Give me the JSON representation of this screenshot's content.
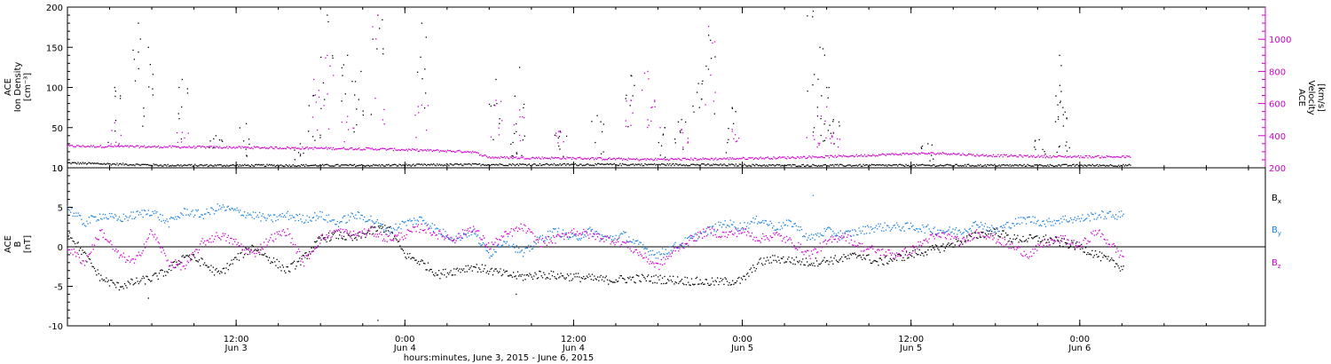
{
  "chart_data": [
    {
      "type": "scatter",
      "panel": "top",
      "ylabel_lines": [
        "ACE",
        "Ion Density",
        "[cm⁻³]"
      ],
      "ylabel_right_lines": [
        "ACE",
        "Velocity",
        "[km/s]"
      ],
      "ylim": [
        0,
        200
      ],
      "ylim_right": [
        200,
        1200
      ],
      "yticks": [
        0,
        50,
        100,
        150,
        200
      ],
      "yticks_right": [
        200,
        400,
        600,
        800,
        1000
      ],
      "colors": {
        "density": "#000000",
        "velocity": "#d000d0"
      },
      "series": [
        {
          "key": "density",
          "axis": "left",
          "baseline": [
            [
              0.0,
              6
            ],
            [
              0.1,
              5
            ],
            [
              0.3,
              3
            ],
            [
              0.6,
              3
            ],
            [
              0.9,
              3
            ],
            [
              1.2,
              4
            ],
            [
              1.5,
              4
            ],
            [
              1.8,
              4
            ],
            [
              2.1,
              3
            ],
            [
              2.5,
              3
            ],
            [
              3.15,
              3
            ]
          ],
          "spikes": [
            [
              0.14,
              100
            ],
            [
              0.21,
              180
            ],
            [
              0.24,
              150
            ],
            [
              0.34,
              110
            ],
            [
              0.44,
              40
            ],
            [
              0.53,
              55
            ],
            [
              0.69,
              30
            ],
            [
              0.73,
              90
            ],
            [
              0.77,
              190
            ],
            [
              0.83,
              140
            ],
            [
              0.87,
              120
            ],
            [
              0.92,
              190
            ],
            [
              1.05,
              180
            ],
            [
              1.27,
              110
            ],
            [
              1.33,
              45
            ],
            [
              1.34,
              125
            ],
            [
              1.46,
              45
            ],
            [
              1.57,
              65
            ],
            [
              1.67,
              115
            ],
            [
              1.77,
              50
            ],
            [
              1.82,
              60
            ],
            [
              1.87,
              105
            ],
            [
              1.9,
              165
            ],
            [
              1.97,
              75
            ],
            [
              2.21,
              195
            ],
            [
              2.23,
              150
            ],
            [
              2.25,
              100
            ],
            [
              2.27,
              60
            ],
            [
              2.55,
              30
            ],
            [
              2.88,
              35
            ],
            [
              2.94,
              140
            ],
            [
              2.945,
              95
            ],
            [
              2.95,
              75
            ]
          ]
        },
        {
          "key": "velocity",
          "axis": "right",
          "baseline": [
            [
              0.0,
              335
            ],
            [
              0.3,
              330
            ],
            [
              0.6,
              325
            ],
            [
              0.9,
              318
            ],
            [
              1.2,
              300
            ],
            [
              1.25,
              265
            ],
            [
              1.35,
              262
            ],
            [
              1.5,
              260
            ],
            [
              1.7,
              252
            ],
            [
              1.9,
              255
            ],
            [
              2.1,
              262
            ],
            [
              2.3,
              272
            ],
            [
              2.5,
              288
            ],
            [
              2.6,
              290
            ],
            [
              2.7,
              278
            ],
            [
              2.9,
              270
            ],
            [
              3.15,
              268
            ]
          ],
          "spikes": [
            [
              0.14,
              480
            ],
            [
              0.34,
              420
            ],
            [
              0.73,
              750
            ],
            [
              0.77,
              900
            ],
            [
              0.83,
              520
            ],
            [
              0.92,
              1150
            ],
            [
              1.05,
              590
            ],
            [
              1.27,
              620
            ],
            [
              1.34,
              560
            ],
            [
              1.46,
              430
            ],
            [
              1.67,
              620
            ],
            [
              1.72,
              800
            ],
            [
              1.74,
              620
            ],
            [
              1.82,
              440
            ],
            [
              1.9,
              1080
            ],
            [
              1.97,
              440
            ],
            [
              2.21,
              400
            ],
            [
              2.25,
              580
            ],
            [
              2.27,
              420
            ]
          ]
        }
      ]
    },
    {
      "type": "scatter",
      "panel": "bottom",
      "ylabel_lines": [
        "ACE",
        "B",
        "[nT]"
      ],
      "ylim": [
        -10,
        10
      ],
      "yticks": [
        -10,
        -5,
        0,
        5,
        10
      ],
      "legend": [
        {
          "key": "bx",
          "label": "B",
          "sub": "x",
          "color": "#000000"
        },
        {
          "key": "by",
          "label": "B",
          "sub": "y",
          "color": "#1a80e0"
        },
        {
          "key": "bz",
          "label": "B",
          "sub": "z",
          "color": "#d000d0"
        }
      ],
      "series": [
        {
          "key": "bx",
          "color": "#000000",
          "points": [
            [
              0.0,
              2
            ],
            [
              0.05,
              -1
            ],
            [
              0.1,
              -4
            ],
            [
              0.15,
              -5
            ],
            [
              0.2,
              -4.5
            ],
            [
              0.25,
              -4
            ],
            [
              0.3,
              -3
            ],
            [
              0.35,
              -1
            ],
            [
              0.4,
              -2
            ],
            [
              0.45,
              -3.5
            ],
            [
              0.5,
              -1.5
            ],
            [
              0.55,
              0
            ],
            [
              0.6,
              -1.5
            ],
            [
              0.65,
              -3
            ],
            [
              0.7,
              -1.5
            ],
            [
              0.75,
              1
            ],
            [
              0.8,
              1.5
            ],
            [
              0.85,
              1
            ],
            [
              0.9,
              2
            ],
            [
              0.95,
              2.5
            ],
            [
              1.0,
              -1
            ],
            [
              1.05,
              -2
            ],
            [
              1.1,
              -3.5
            ],
            [
              1.15,
              -3
            ],
            [
              1.2,
              -2.5
            ],
            [
              1.25,
              -3
            ],
            [
              1.3,
              -3.5
            ],
            [
              1.35,
              -3.8
            ],
            [
              1.4,
              -3.5
            ],
            [
              1.5,
              -3.8
            ],
            [
              1.6,
              -4.2
            ],
            [
              1.7,
              -4
            ],
            [
              1.8,
              -4.2
            ],
            [
              1.9,
              -4.5
            ],
            [
              2.0,
              -4.3
            ],
            [
              2.05,
              -2
            ],
            [
              2.1,
              -1.5
            ],
            [
              2.2,
              -2
            ],
            [
              2.3,
              -1.5
            ],
            [
              2.35,
              -1
            ],
            [
              2.4,
              -2
            ],
            [
              2.5,
              -1
            ],
            [
              2.6,
              0
            ],
            [
              2.7,
              1.5
            ],
            [
              2.75,
              2
            ],
            [
              2.8,
              1
            ],
            [
              2.9,
              1
            ],
            [
              3.0,
              0
            ],
            [
              3.05,
              -1
            ],
            [
              3.12,
              -2.5
            ]
          ]
        },
        {
          "key": "by",
          "color": "#1a80e0",
          "points": [
            [
              0.0,
              5
            ],
            [
              0.05,
              3
            ],
            [
              0.1,
              4
            ],
            [
              0.15,
              3.5
            ],
            [
              0.2,
              4
            ],
            [
              0.25,
              4.5
            ],
            [
              0.3,
              3
            ],
            [
              0.35,
              4.5
            ],
            [
              0.4,
              4
            ],
            [
              0.45,
              5
            ],
            [
              0.5,
              4.5
            ],
            [
              0.55,
              4
            ],
            [
              0.6,
              3.5
            ],
            [
              0.65,
              4
            ],
            [
              0.7,
              3.5
            ],
            [
              0.75,
              4
            ],
            [
              0.8,
              3
            ],
            [
              0.85,
              4
            ],
            [
              0.9,
              3.5
            ],
            [
              0.95,
              2
            ],
            [
              1.0,
              3
            ],
            [
              1.05,
              3.5
            ],
            [
              1.1,
              2
            ],
            [
              1.15,
              1
            ],
            [
              1.2,
              2
            ],
            [
              1.25,
              -1
            ],
            [
              1.3,
              1
            ],
            [
              1.35,
              -1
            ],
            [
              1.4,
              1
            ],
            [
              1.45,
              2
            ],
            [
              1.5,
              1
            ],
            [
              1.55,
              2
            ],
            [
              1.6,
              1
            ],
            [
              1.65,
              1.5
            ],
            [
              1.7,
              0
            ],
            [
              1.75,
              -1
            ],
            [
              1.8,
              0
            ],
            [
              1.9,
              2
            ],
            [
              1.95,
              3
            ],
            [
              2.0,
              2.5
            ],
            [
              2.05,
              3.5
            ],
            [
              2.1,
              2.5
            ],
            [
              2.15,
              3
            ],
            [
              2.2,
              1
            ],
            [
              2.25,
              2
            ],
            [
              2.3,
              1.5
            ],
            [
              2.35,
              2
            ],
            [
              2.4,
              2.5
            ],
            [
              2.5,
              2.5
            ],
            [
              2.6,
              2
            ],
            [
              2.65,
              2
            ],
            [
              2.7,
              3
            ],
            [
              2.75,
              2
            ],
            [
              2.8,
              3
            ],
            [
              2.85,
              3.5
            ],
            [
              2.9,
              3
            ],
            [
              2.95,
              3.5
            ],
            [
              3.0,
              3.5
            ],
            [
              3.05,
              4
            ],
            [
              3.1,
              4
            ],
            [
              3.12,
              4
            ]
          ]
        },
        {
          "key": "bz",
          "color": "#d000d0",
          "points": [
            [
              0.0,
              0
            ],
            [
              0.05,
              -2
            ],
            [
              0.1,
              2
            ],
            [
              0.15,
              -1
            ],
            [
              0.2,
              -2
            ],
            [
              0.25,
              2
            ],
            [
              0.3,
              -2
            ],
            [
              0.35,
              -2.5
            ],
            [
              0.4,
              0.5
            ],
            [
              0.45,
              1.5
            ],
            [
              0.5,
              0.5
            ],
            [
              0.55,
              -1
            ],
            [
              0.6,
              1
            ],
            [
              0.65,
              2
            ],
            [
              0.7,
              -2
            ],
            [
              0.75,
              1
            ],
            [
              0.8,
              2
            ],
            [
              0.85,
              1.5
            ],
            [
              0.9,
              2
            ],
            [
              0.95,
              1
            ],
            [
              1.0,
              1.5
            ],
            [
              1.05,
              2.5
            ],
            [
              1.1,
              1.5
            ],
            [
              1.15,
              1
            ],
            [
              1.2,
              2.5
            ],
            [
              1.25,
              0
            ],
            [
              1.3,
              1.5
            ],
            [
              1.35,
              2.5
            ],
            [
              1.4,
              0.5
            ],
            [
              1.45,
              1
            ],
            [
              1.5,
              2
            ],
            [
              1.55,
              1.5
            ],
            [
              1.6,
              1
            ],
            [
              1.65,
              0.5
            ],
            [
              1.7,
              -1
            ],
            [
              1.75,
              -2.5
            ],
            [
              1.8,
              -0.5
            ],
            [
              1.85,
              1
            ],
            [
              1.9,
              2
            ],
            [
              1.95,
              1.5
            ],
            [
              2.0,
              2
            ],
            [
              2.05,
              1
            ],
            [
              2.1,
              1.5
            ],
            [
              2.15,
              0.5
            ],
            [
              2.2,
              -1
            ],
            [
              2.25,
              0.5
            ],
            [
              2.3,
              1.5
            ],
            [
              2.35,
              0
            ],
            [
              2.4,
              -0.5
            ],
            [
              2.45,
              -1
            ],
            [
              2.5,
              -0.5
            ],
            [
              2.55,
              1
            ],
            [
              2.6,
              1.5
            ],
            [
              2.65,
              0.5
            ],
            [
              2.7,
              2
            ],
            [
              2.75,
              1
            ],
            [
              2.8,
              0
            ],
            [
              2.85,
              -1
            ],
            [
              2.9,
              0.5
            ],
            [
              2.95,
              1
            ],
            [
              3.0,
              0
            ],
            [
              3.05,
              2
            ],
            [
              3.1,
              0
            ],
            [
              3.12,
              -1
            ]
          ]
        }
      ],
      "hline": 0,
      "outliers": [
        [
          0.24,
          -6.5
        ],
        [
          1.33,
          -6
        ],
        [
          2.21,
          6.5
        ],
        [
          0.92,
          -9.3
        ]
      ]
    }
  ],
  "x_axis": {
    "xlim": [
      0,
      3.55
    ],
    "ticks": [
      {
        "x": 0.5,
        "time": "12:00",
        "date": "Jun 3"
      },
      {
        "x": 1.0,
        "time": "0:00",
        "date": "Jun 4"
      },
      {
        "x": 1.5,
        "time": "12:00",
        "date": "Jun 4"
      },
      {
        "x": 2.0,
        "time": "0:00",
        "date": "Jun 5"
      },
      {
        "x": 2.5,
        "time": "12:00",
        "date": "Jun 5"
      },
      {
        "x": 3.0,
        "time": "0:00",
        "date": "Jun 6"
      }
    ],
    "title": "hours:minutes, June  3, 2015 - June  6, 2015"
  }
}
